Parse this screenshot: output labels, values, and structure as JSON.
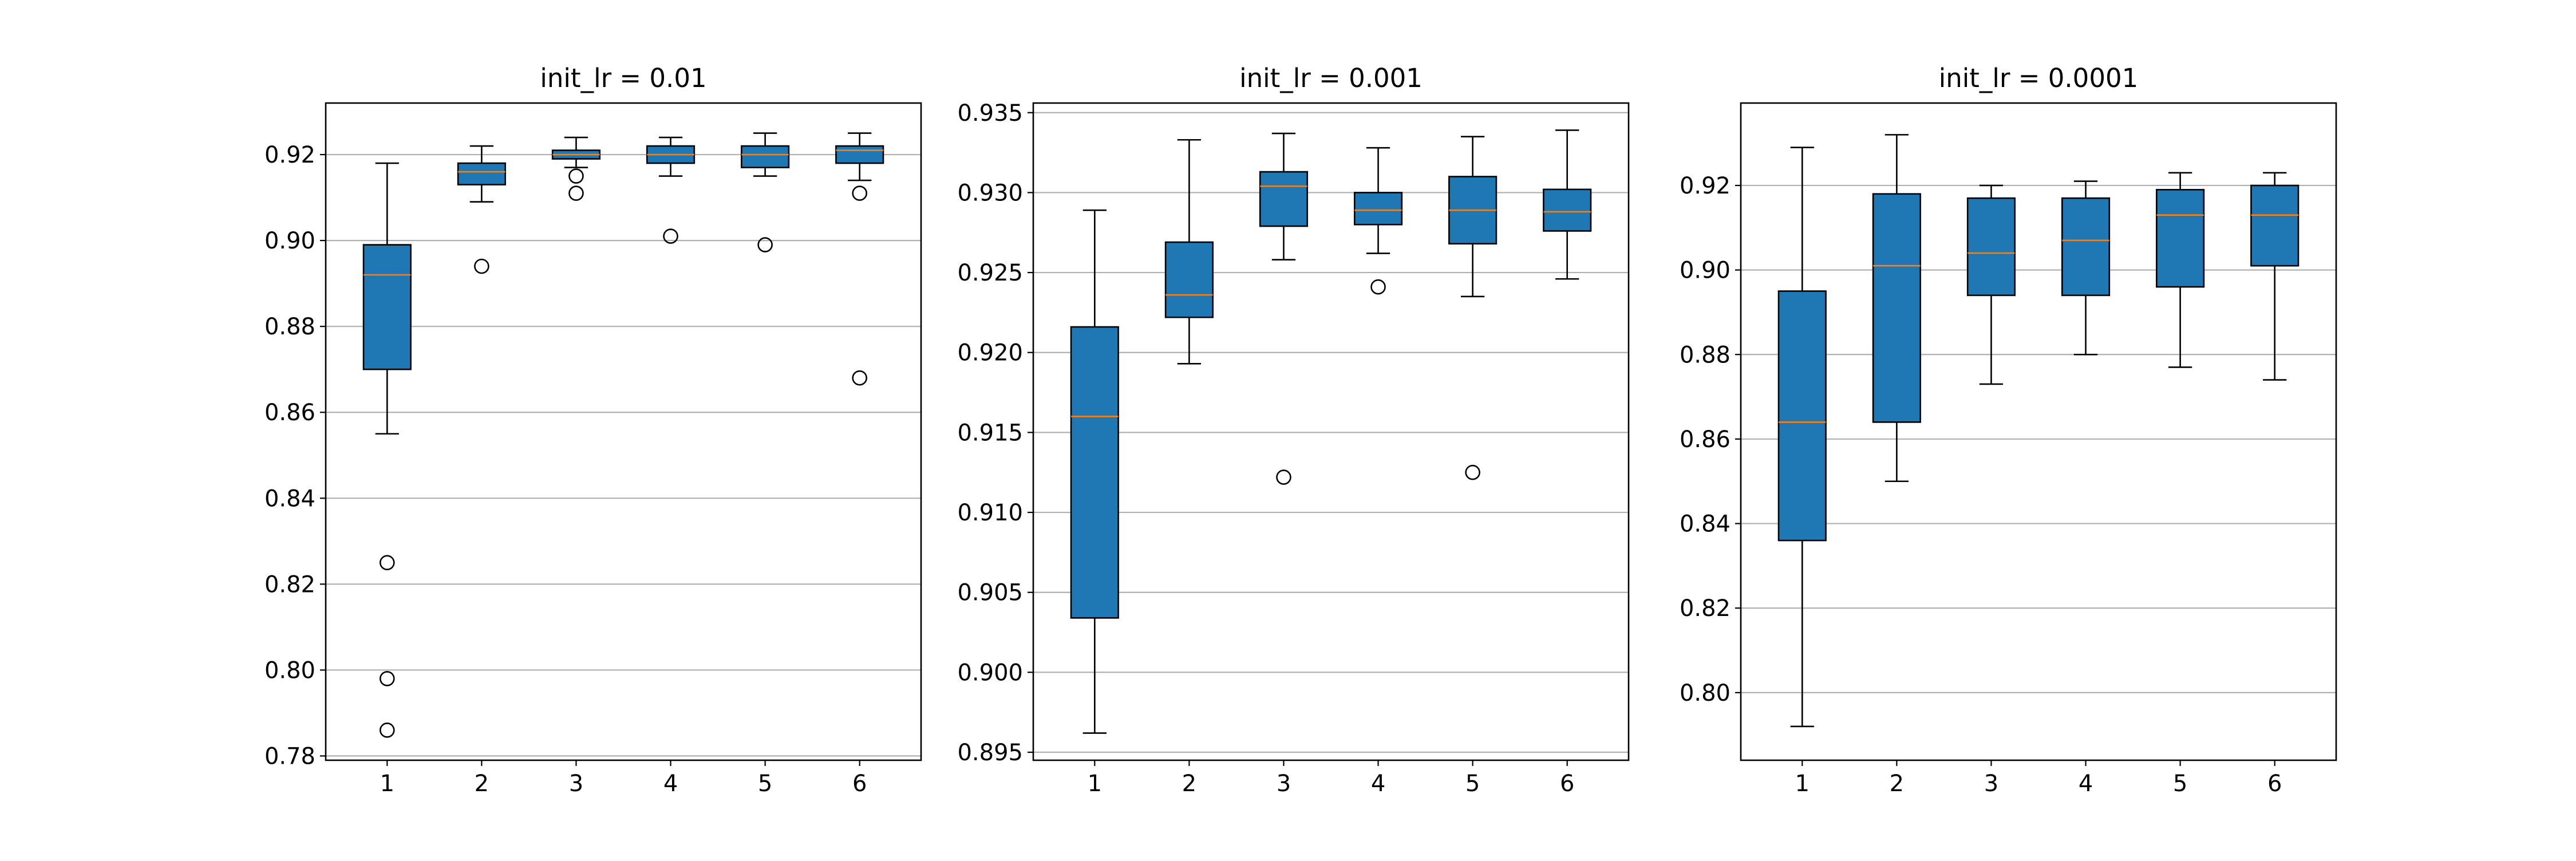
{
  "figure": {
    "background": "#ffffff",
    "box_color": "#1f77b4",
    "median_color": "#ff7f0e",
    "grid_color": "#b0b0b0"
  },
  "chart_data": [
    {
      "type": "boxplot",
      "title": "init_lr = 0.01",
      "categories": [
        "1",
        "2",
        "3",
        "4",
        "5",
        "6"
      ],
      "ylim": [
        0.779,
        0.932
      ],
      "yticks": [
        0.78,
        0.8,
        0.82,
        0.84,
        0.86,
        0.88,
        0.9,
        0.92
      ],
      "ytick_labels": [
        "0.78",
        "0.80",
        "0.82",
        "0.84",
        "0.86",
        "0.88",
        "0.90",
        "0.92"
      ],
      "grid": "y",
      "boxes": [
        {
          "whislo": 0.855,
          "q1": 0.87,
          "med": 0.892,
          "q3": 0.899,
          "whishi": 0.918,
          "fliers": [
            0.825,
            0.798,
            0.786
          ]
        },
        {
          "whislo": 0.909,
          "q1": 0.913,
          "med": 0.916,
          "q3": 0.918,
          "whishi": 0.922,
          "fliers": [
            0.894
          ]
        },
        {
          "whislo": 0.917,
          "q1": 0.919,
          "med": 0.92,
          "q3": 0.921,
          "whishi": 0.924,
          "fliers": [
            0.915,
            0.911
          ]
        },
        {
          "whislo": 0.915,
          "q1": 0.918,
          "med": 0.92,
          "q3": 0.922,
          "whishi": 0.924,
          "fliers": [
            0.901
          ]
        },
        {
          "whislo": 0.915,
          "q1": 0.917,
          "med": 0.92,
          "q3": 0.922,
          "whishi": 0.925,
          "fliers": [
            0.899
          ]
        },
        {
          "whislo": 0.914,
          "q1": 0.918,
          "med": 0.921,
          "q3": 0.922,
          "whishi": 0.925,
          "fliers": [
            0.911,
            0.868
          ]
        }
      ]
    },
    {
      "type": "boxplot",
      "title": "init_lr = 0.001",
      "categories": [
        "1",
        "2",
        "3",
        "4",
        "5",
        "6"
      ],
      "ylim": [
        0.8945,
        0.9356
      ],
      "yticks": [
        0.895,
        0.9,
        0.905,
        0.91,
        0.915,
        0.92,
        0.925,
        0.93,
        0.935
      ],
      "ytick_labels": [
        "0.895",
        "0.900",
        "0.905",
        "0.910",
        "0.915",
        "0.920",
        "0.925",
        "0.930",
        "0.935"
      ],
      "grid": "y",
      "boxes": [
        {
          "whislo": 0.8962,
          "q1": 0.9034,
          "med": 0.916,
          "q3": 0.9216,
          "whishi": 0.9289,
          "fliers": []
        },
        {
          "whislo": 0.9193,
          "q1": 0.9222,
          "med": 0.9236,
          "q3": 0.9269,
          "whishi": 0.9333,
          "fliers": []
        },
        {
          "whislo": 0.9258,
          "q1": 0.9279,
          "med": 0.9304,
          "q3": 0.9313,
          "whishi": 0.9337,
          "fliers": [
            0.9122
          ]
        },
        {
          "whislo": 0.9262,
          "q1": 0.928,
          "med": 0.9289,
          "q3": 0.93,
          "whishi": 0.9328,
          "fliers": [
            0.9241
          ]
        },
        {
          "whislo": 0.9235,
          "q1": 0.9268,
          "med": 0.9289,
          "q3": 0.931,
          "whishi": 0.9335,
          "fliers": [
            0.9125
          ]
        },
        {
          "whislo": 0.9246,
          "q1": 0.9276,
          "med": 0.9288,
          "q3": 0.9302,
          "whishi": 0.9339,
          "fliers": []
        }
      ]
    },
    {
      "type": "boxplot",
      "title": "init_lr = 0.0001",
      "categories": [
        "1",
        "2",
        "3",
        "4",
        "5",
        "6"
      ],
      "ylim": [
        0.784,
        0.9395
      ],
      "yticks": [
        0.8,
        0.82,
        0.84,
        0.86,
        0.88,
        0.9,
        0.92
      ],
      "ytick_labels": [
        "0.80",
        "0.82",
        "0.84",
        "0.86",
        "0.88",
        "0.90",
        "0.92"
      ],
      "grid": "y",
      "boxes": [
        {
          "whislo": 0.792,
          "q1": 0.836,
          "med": 0.864,
          "q3": 0.895,
          "whishi": 0.929,
          "fliers": []
        },
        {
          "whislo": 0.85,
          "q1": 0.864,
          "med": 0.901,
          "q3": 0.918,
          "whishi": 0.932,
          "fliers": []
        },
        {
          "whislo": 0.873,
          "q1": 0.894,
          "med": 0.904,
          "q3": 0.917,
          "whishi": 0.92,
          "fliers": []
        },
        {
          "whislo": 0.88,
          "q1": 0.894,
          "med": 0.907,
          "q3": 0.917,
          "whishi": 0.921,
          "fliers": []
        },
        {
          "whislo": 0.877,
          "q1": 0.896,
          "med": 0.913,
          "q3": 0.919,
          "whishi": 0.923,
          "fliers": []
        },
        {
          "whislo": 0.874,
          "q1": 0.901,
          "med": 0.913,
          "q3": 0.92,
          "whishi": 0.923,
          "fliers": []
        }
      ]
    }
  ]
}
